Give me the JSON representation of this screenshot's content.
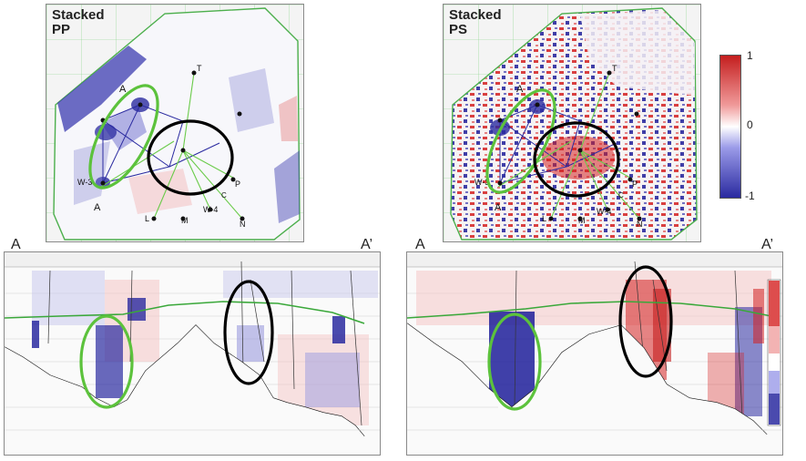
{
  "maps": {
    "pp": {
      "title": "Stacked\nPP"
    },
    "ps": {
      "title": "Stacked\nPS"
    }
  },
  "colorbar": {
    "max": "1",
    "mid": "0",
    "min": "-1"
  },
  "wells": [
    "T",
    "W-3",
    "W-4",
    "L",
    "M",
    "N",
    "P",
    "C",
    "A"
  ],
  "sections": {
    "pp": {
      "start": "A",
      "end": "A’"
    },
    "ps": {
      "start": "A",
      "end": "A’"
    }
  },
  "colors": {
    "positive": "#d42020",
    "negative": "#1e1e9a",
    "highlight_green": "#5cc23c",
    "highlight_black": "#000000",
    "horizon": "#3aa83a"
  }
}
